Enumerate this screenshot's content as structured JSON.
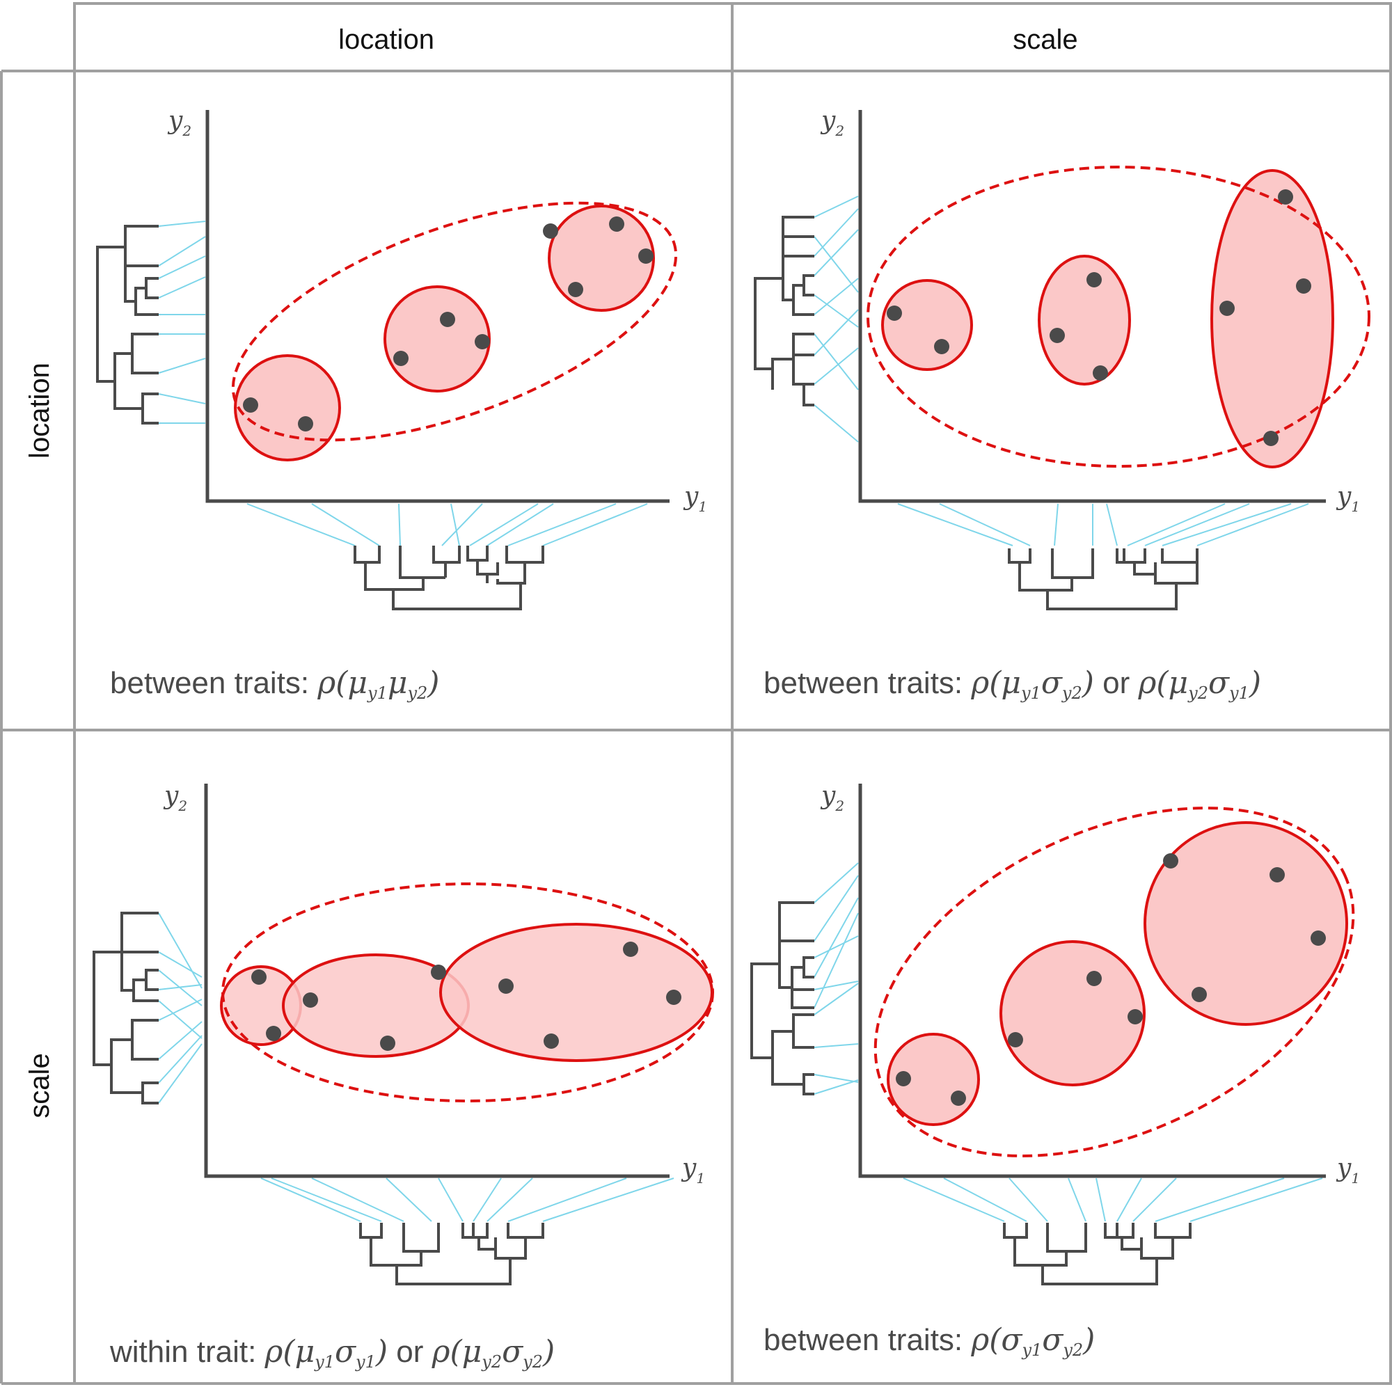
{
  "colors": {
    "grid_border": "#a0a0a0",
    "axis": "#4a4a4a",
    "tree": "#4a4a4a",
    "link": "#7fd6ea",
    "ellipse_stroke": "#dd1111",
    "ellipse_fill": "#fbc8c8",
    "point": "#4a4a4a"
  },
  "headers": {
    "col_location": "location",
    "col_scale": "scale",
    "row_location": "location",
    "row_scale": "scale"
  },
  "axes": {
    "y_label": "y",
    "y_sub": "2",
    "x_label": "y",
    "x_sub": "1"
  },
  "symbols": {
    "rho": "ρ",
    "mu": "μ",
    "sigma": "σ",
    "open": "(",
    "close": ")",
    "sub_y1": "y1",
    "sub_y2": "y2"
  },
  "captions": {
    "loc_loc_prefix": "between traits: ",
    "scale_loc_prefix": "between traits: ",
    "scale_loc_or": " or ",
    "loc_scale_prefix": "within trait: ",
    "loc_scale_or": " or ",
    "scale_scale_prefix": "between traits: "
  }
}
